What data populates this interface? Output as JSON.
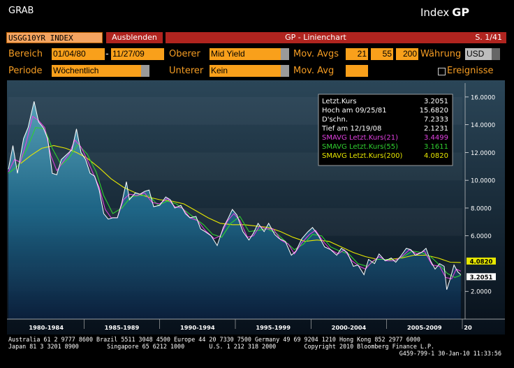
{
  "header": {
    "grab": "GRAB",
    "index_label": "Index",
    "index_code": "GP"
  },
  "toolbar": {
    "ticker": "USGG10YR INDEX",
    "hide_button": "Ausblenden",
    "title": "GP - Linienchart",
    "page": "S. 1/41"
  },
  "controls": {
    "range_label": "Bereich",
    "range_from": "01/04/80",
    "range_sep": "-",
    "range_to": "11/27/09",
    "upper_label": "Oberer",
    "upper_value": "Mid Yield",
    "mov_avgs_label": "Mov. Avgs",
    "mov_avg_1": "21",
    "mov_avg_2": "55",
    "mov_avg_3": "200",
    "currency_label": "Währung",
    "currency_value": "USD",
    "period_label": "Periode",
    "period_value": "Wöchentlich",
    "lower_label": "Unterer",
    "lower_value": "Kein",
    "mov_avg_label": "Mov. Avg",
    "mov_avg_value": "",
    "events_label": "Ereignisse"
  },
  "legend": [
    {
      "label": "Letzt.Kurs",
      "value": "3.2051",
      "color": "#ffffff"
    },
    {
      "label": "Hoch am  09/25/81",
      "value": "15.6820",
      "color": "#ffffff"
    },
    {
      "label": "D'schn.",
      "value": "7.2333",
      "color": "#ffffff"
    },
    {
      "label": "Tief am  12/19/08",
      "value": "2.1231",
      "color": "#ffffff"
    },
    {
      "label": "SMAVG Letzt.Kurs(21)",
      "value": "3.4499",
      "color": "#e040e0"
    },
    {
      "label": "SMAVG Letzt.Kurs(55)",
      "value": "3.1611",
      "color": "#30d030"
    },
    {
      "label": "SMAVG Letzt.Kurs(200)",
      "value": "4.0820",
      "color": "#e8e800"
    }
  ],
  "chart_data": {
    "type": "line",
    "xlim": [
      1980.0,
      2010.0
    ],
    "ylim": [
      0,
      17
    ],
    "x_tick_labels": [
      "1980-1984",
      "1985-1989",
      "1990-1994",
      "1995-1999",
      "2000-2004",
      "2005-2009",
      "20"
    ],
    "y_tick_labels": [
      "16.0000",
      "14.0000",
      "12.0000",
      "10.0000",
      "8.0000",
      "6.0000",
      "2.0000"
    ],
    "y_ticks": [
      16,
      14,
      12,
      10,
      8,
      6,
      2
    ],
    "markers": [
      {
        "label": "4.0820",
        "value": 4.082,
        "bg": "#e8e800",
        "fg": "#000000"
      },
      {
        "label": "3.2051",
        "value": 3.2051,
        "bg": "#ffffff",
        "fg": "#000000"
      }
    ],
    "series": [
      {
        "name": "Letzt.Kurs",
        "color": "#ffffff",
        "points": [
          [
            1980.0,
            10.8
          ],
          [
            1980.3,
            12.5
          ],
          [
            1980.6,
            10.5
          ],
          [
            1981.0,
            13.0
          ],
          [
            1981.3,
            13.8
          ],
          [
            1981.7,
            15.68
          ],
          [
            1982.0,
            14.2
          ],
          [
            1982.3,
            13.8
          ],
          [
            1982.6,
            13.0
          ],
          [
            1982.9,
            10.5
          ],
          [
            1983.2,
            10.4
          ],
          [
            1983.5,
            11.5
          ],
          [
            1983.8,
            11.8
          ],
          [
            1984.2,
            12.2
          ],
          [
            1984.5,
            13.7
          ],
          [
            1984.8,
            12.0
          ],
          [
            1985.1,
            11.5
          ],
          [
            1985.4,
            10.5
          ],
          [
            1985.7,
            10.3
          ],
          [
            1986.0,
            9.3
          ],
          [
            1986.3,
            7.6
          ],
          [
            1986.6,
            7.2
          ],
          [
            1986.9,
            7.3
          ],
          [
            1987.2,
            7.3
          ],
          [
            1987.5,
            8.4
          ],
          [
            1987.8,
            9.9
          ],
          [
            1988.0,
            8.6
          ],
          [
            1988.4,
            9.1
          ],
          [
            1988.7,
            9.0
          ],
          [
            1989.0,
            9.2
          ],
          [
            1989.3,
            9.3
          ],
          [
            1989.6,
            8.1
          ],
          [
            1990.0,
            8.2
          ],
          [
            1990.4,
            8.8
          ],
          [
            1990.7,
            8.6
          ],
          [
            1991.0,
            8.0
          ],
          [
            1991.4,
            8.2
          ],
          [
            1991.7,
            7.6
          ],
          [
            1992.0,
            7.3
          ],
          [
            1992.4,
            7.4
          ],
          [
            1992.7,
            6.5
          ],
          [
            1993.0,
            6.3
          ],
          [
            1993.4,
            6.0
          ],
          [
            1993.8,
            5.3
          ],
          [
            1994.2,
            6.6
          ],
          [
            1994.5,
            7.2
          ],
          [
            1994.8,
            7.9
          ],
          [
            1995.1,
            7.5
          ],
          [
            1995.5,
            6.3
          ],
          [
            1995.9,
            5.7
          ],
          [
            1996.2,
            6.2
          ],
          [
            1996.5,
            6.9
          ],
          [
            1996.9,
            6.3
          ],
          [
            1997.2,
            6.9
          ],
          [
            1997.6,
            6.1
          ],
          [
            1997.9,
            5.8
          ],
          [
            1998.3,
            5.6
          ],
          [
            1998.7,
            4.6
          ],
          [
            1999.0,
            4.9
          ],
          [
            1999.4,
            5.8
          ],
          [
            1999.8,
            6.3
          ],
          [
            2000.1,
            6.6
          ],
          [
            2000.5,
            6.0
          ],
          [
            2000.9,
            5.2
          ],
          [
            2001.3,
            5.0
          ],
          [
            2001.7,
            4.6
          ],
          [
            2002.0,
            5.1
          ],
          [
            2002.4,
            4.8
          ],
          [
            2002.8,
            3.8
          ],
          [
            2003.1,
            3.9
          ],
          [
            2003.5,
            3.2
          ],
          [
            2003.8,
            4.3
          ],
          [
            2004.2,
            4.0
          ],
          [
            2004.5,
            4.7
          ],
          [
            2004.9,
            4.2
          ],
          [
            2005.3,
            4.4
          ],
          [
            2005.6,
            4.1
          ],
          [
            2005.9,
            4.5
          ],
          [
            2006.3,
            5.1
          ],
          [
            2006.6,
            5.0
          ],
          [
            2006.9,
            4.6
          ],
          [
            2007.3,
            4.8
          ],
          [
            2007.6,
            5.1
          ],
          [
            2007.9,
            4.2
          ],
          [
            2008.2,
            3.6
          ],
          [
            2008.5,
            4.0
          ],
          [
            2008.8,
            3.8
          ],
          [
            2008.97,
            2.12
          ],
          [
            2009.2,
            2.9
          ],
          [
            2009.45,
            3.9
          ],
          [
            2009.7,
            3.4
          ],
          [
            2009.9,
            3.2
          ]
        ]
      },
      {
        "name": "SMAVG Letzt.Kurs(21)",
        "color": "#e040e0",
        "points": [
          [
            1980.0,
            10.6
          ],
          [
            1980.4,
            11.5
          ],
          [
            1980.8,
            11.3
          ],
          [
            1981.2,
            12.8
          ],
          [
            1981.6,
            14.6
          ],
          [
            1982.0,
            14.3
          ],
          [
            1982.4,
            13.8
          ],
          [
            1982.8,
            11.8
          ],
          [
            1983.2,
            10.7
          ],
          [
            1983.6,
            11.3
          ],
          [
            1984.0,
            11.9
          ],
          [
            1984.4,
            12.9
          ],
          [
            1984.8,
            12.4
          ],
          [
            1985.2,
            11.5
          ],
          [
            1985.6,
            10.5
          ],
          [
            1986.0,
            9.5
          ],
          [
            1986.4,
            7.9
          ],
          [
            1986.8,
            7.3
          ],
          [
            1987.2,
            7.3
          ],
          [
            1987.6,
            8.6
          ],
          [
            1988.0,
            9.0
          ],
          [
            1988.5,
            8.9
          ],
          [
            1989.0,
            9.1
          ],
          [
            1989.5,
            8.4
          ],
          [
            1990.0,
            8.3
          ],
          [
            1990.5,
            8.7
          ],
          [
            1991.0,
            8.1
          ],
          [
            1991.5,
            8.0
          ],
          [
            1992.0,
            7.3
          ],
          [
            1992.5,
            7.1
          ],
          [
            1993.0,
            6.4
          ],
          [
            1993.6,
            5.8
          ],
          [
            1994.0,
            6.0
          ],
          [
            1994.5,
            7.1
          ],
          [
            1994.9,
            7.6
          ],
          [
            1995.3,
            7.1
          ],
          [
            1995.8,
            5.9
          ],
          [
            1996.2,
            6.0
          ],
          [
            1996.6,
            6.7
          ],
          [
            1997.0,
            6.5
          ],
          [
            1997.5,
            6.5
          ],
          [
            1998.0,
            5.7
          ],
          [
            1998.5,
            5.4
          ],
          [
            1998.9,
            4.7
          ],
          [
            1999.4,
            5.5
          ],
          [
            1999.9,
            6.1
          ],
          [
            2000.3,
            6.4
          ],
          [
            2000.8,
            5.6
          ],
          [
            2001.3,
            5.0
          ],
          [
            2001.8,
            4.7
          ],
          [
            2002.2,
            5.0
          ],
          [
            2002.7,
            4.2
          ],
          [
            2003.2,
            3.8
          ],
          [
            2003.6,
            3.6
          ],
          [
            2004.0,
            4.1
          ],
          [
            2004.5,
            4.5
          ],
          [
            2005.0,
            4.2
          ],
          [
            2005.5,
            4.2
          ],
          [
            2006.0,
            4.5
          ],
          [
            2006.5,
            5.0
          ],
          [
            2007.0,
            4.7
          ],
          [
            2007.5,
            4.9
          ],
          [
            2008.0,
            3.9
          ],
          [
            2008.5,
            3.8
          ],
          [
            2008.9,
            3.0
          ],
          [
            2009.3,
            2.9
          ],
          [
            2009.6,
            3.6
          ],
          [
            2009.9,
            3.45
          ]
        ]
      },
      {
        "name": "SMAVG Letzt.Kurs(55)",
        "color": "#30d030",
        "points": [
          [
            1980.0,
            10.5
          ],
          [
            1980.6,
            11.0
          ],
          [
            1981.2,
            12.2
          ],
          [
            1981.8,
            13.8
          ],
          [
            1982.4,
            13.7
          ],
          [
            1982.9,
            12.3
          ],
          [
            1983.5,
            11.1
          ],
          [
            1984.0,
            11.6
          ],
          [
            1984.6,
            12.6
          ],
          [
            1985.2,
            11.9
          ],
          [
            1985.8,
            10.6
          ],
          [
            1986.3,
            8.9
          ],
          [
            1986.9,
            7.6
          ],
          [
            1987.5,
            8.0
          ],
          [
            1988.1,
            8.8
          ],
          [
            1988.7,
            8.9
          ],
          [
            1989.3,
            8.9
          ],
          [
            1989.9,
            8.2
          ],
          [
            1990.5,
            8.5
          ],
          [
            1991.1,
            8.3
          ],
          [
            1991.7,
            7.8
          ],
          [
            1992.3,
            7.3
          ],
          [
            1992.9,
            6.8
          ],
          [
            1993.5,
            6.1
          ],
          [
            1994.1,
            5.9
          ],
          [
            1994.7,
            6.9
          ],
          [
            1995.3,
            7.4
          ],
          [
            1995.9,
            6.3
          ],
          [
            1996.5,
            6.4
          ],
          [
            1997.1,
            6.5
          ],
          [
            1997.7,
            6.2
          ],
          [
            1998.3,
            5.6
          ],
          [
            1998.9,
            5.0
          ],
          [
            1999.5,
            5.4
          ],
          [
            2000.1,
            6.1
          ],
          [
            2000.7,
            6.0
          ],
          [
            2001.3,
            5.2
          ],
          [
            2001.9,
            4.9
          ],
          [
            2002.5,
            4.7
          ],
          [
            2003.1,
            4.0
          ],
          [
            2003.7,
            3.8
          ],
          [
            2004.3,
            4.3
          ],
          [
            2004.9,
            4.3
          ],
          [
            2005.5,
            4.2
          ],
          [
            2006.1,
            4.5
          ],
          [
            2006.7,
            4.9
          ],
          [
            2007.3,
            4.8
          ],
          [
            2007.9,
            4.5
          ],
          [
            2008.5,
            3.9
          ],
          [
            2009.0,
            3.3
          ],
          [
            2009.5,
            3.0
          ],
          [
            2009.9,
            3.16
          ]
        ]
      },
      {
        "name": "SMAVG Letzt.Kurs(200)",
        "color": "#e8e800",
        "points": [
          [
            1980.8,
            11.2
          ],
          [
            1981.5,
            11.8
          ],
          [
            1982.2,
            12.3
          ],
          [
            1983.0,
            12.5
          ],
          [
            1983.8,
            12.3
          ],
          [
            1984.5,
            12.0
          ],
          [
            1985.2,
            11.6
          ],
          [
            1986.0,
            10.9
          ],
          [
            1986.8,
            10.1
          ],
          [
            1987.6,
            9.5
          ],
          [
            1988.4,
            9.1
          ],
          [
            1989.2,
            8.8
          ],
          [
            1990.0,
            8.6
          ],
          [
            1990.8,
            8.5
          ],
          [
            1991.6,
            8.3
          ],
          [
            1992.4,
            7.8
          ],
          [
            1993.2,
            7.3
          ],
          [
            1994.0,
            6.9
          ],
          [
            1994.8,
            6.8
          ],
          [
            1995.6,
            6.8
          ],
          [
            1996.4,
            6.7
          ],
          [
            1997.2,
            6.6
          ],
          [
            1998.0,
            6.3
          ],
          [
            1998.8,
            5.9
          ],
          [
            1999.6,
            5.6
          ],
          [
            2000.4,
            5.7
          ],
          [
            2001.2,
            5.6
          ],
          [
            2002.0,
            5.2
          ],
          [
            2002.8,
            4.8
          ],
          [
            2003.6,
            4.5
          ],
          [
            2004.4,
            4.3
          ],
          [
            2005.2,
            4.3
          ],
          [
            2006.0,
            4.4
          ],
          [
            2006.8,
            4.6
          ],
          [
            2007.6,
            4.6
          ],
          [
            2008.4,
            4.4
          ],
          [
            2009.2,
            4.1
          ],
          [
            2009.9,
            4.08
          ]
        ]
      }
    ]
  },
  "footer": {
    "line1": "Australia 61 2 9777 8600 Brazil 5511 3048 4500 Europe 44 20 7330 7500 Germany 49 69 9204 1210 Hong Kong 852 2977 6000",
    "line2": "Japan 81 3 3201 8900        Singapore 65 6212 1000       U.S. 1 212 318 2000        Copyright 2010 Bloomberg Finance L.P.",
    "line3": "G459-799-1 30-Jan-10 11:33:56"
  }
}
